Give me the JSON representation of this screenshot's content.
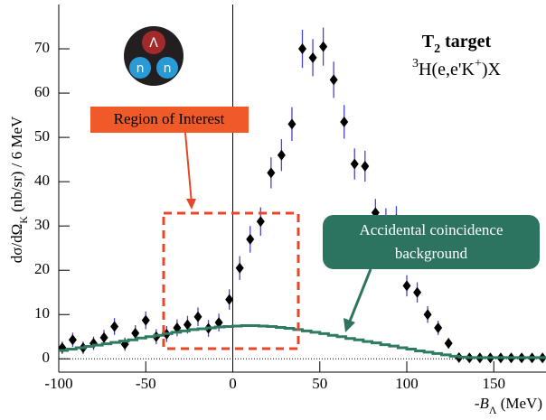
{
  "chart_data": {
    "type": "scatter",
    "title": [
      {
        "text": "T",
        "pos": "base"
      },
      {
        "text": "2",
        "pos": "sub"
      },
      {
        "text": " target",
        "pos": "base"
      }
    ],
    "subtitle": [
      {
        "text": "3",
        "pos": "sup"
      },
      {
        "text": "H(e,e'K",
        "pos": "base"
      },
      {
        "text": "+",
        "pos": "sup"
      },
      {
        "text": ")X",
        "pos": "base"
      }
    ],
    "y_label": [
      {
        "text": "dσ/dΩ",
        "pos": "base"
      },
      {
        "text": "K",
        "pos": "sub"
      },
      {
        "text": " (nb/sr) / 6 MeV",
        "pos": "base"
      }
    ],
    "x_label": [
      {
        "text": "-B",
        "pos": "italic"
      },
      {
        "text": "Λ",
        "pos": "sub"
      },
      {
        "text": " (MeV)",
        "pos": "base"
      }
    ],
    "annotations": {
      "region": "Region of Interest",
      "background": [
        "Accidental coincidence",
        "background"
      ],
      "icon": [
        "Λ",
        "n",
        "n"
      ]
    },
    "xlim": [
      -100,
      180
    ],
    "ylim": [
      -3,
      80
    ],
    "xticks": [
      -100,
      -50,
      0,
      50,
      100,
      150
    ],
    "yticks": [
      0,
      10,
      20,
      30,
      40,
      50,
      60,
      70
    ],
    "series": [
      {
        "type": "errorbar",
        "color": "#000000",
        "error_color": "#4646c8",
        "x": [
          -98,
          -92,
          -86,
          -80,
          -74,
          -68,
          -62,
          -56,
          -50,
          -44,
          -38,
          -32,
          -26,
          -20,
          -14,
          -8,
          -2,
          4,
          10,
          16,
          22,
          28,
          34,
          40,
          46,
          52,
          58,
          64,
          70,
          76,
          82,
          88,
          94,
          100,
          106,
          112,
          118,
          124,
          130,
          136,
          142,
          148,
          154,
          160,
          166,
          172,
          178
        ],
        "values": [
          2.5,
          4.3,
          2.5,
          3.5,
          4.8,
          7.3,
          3.3,
          5.8,
          8.7,
          5.0,
          5.6,
          7.0,
          7.7,
          9.5,
          6.9,
          8.2,
          13.4,
          20.5,
          27,
          31,
          42,
          46,
          53,
          70,
          68,
          70.5,
          63,
          53.5,
          44,
          43.5,
          33,
          31,
          31.5,
          16.5,
          15,
          10,
          7,
          3.5,
          0.3,
          0.2,
          0.2,
          0.2,
          0.2,
          0.2,
          0.2,
          0.2,
          0.2
        ],
        "errors": [
          1.4,
          1.6,
          1.4,
          1.5,
          1.7,
          1.9,
          1.5,
          1.8,
          2,
          1.7,
          1.8,
          1.9,
          2,
          2.1,
          1.9,
          2,
          2.3,
          2.7,
          3,
          3.2,
          3.5,
          3.6,
          3.8,
          4.3,
          4.2,
          4.3,
          4.1,
          3.8,
          3.5,
          3.5,
          3.1,
          3,
          3,
          2.4,
          2.3,
          1.9,
          1.6,
          1.2,
          0.6,
          0.5,
          0.5,
          0.5,
          0.5,
          0.5,
          0.5,
          0.5,
          0.5
        ]
      },
      {
        "type": "step",
        "color": "#2e7a62",
        "x": [
          -97.5,
          -92.5,
          -87.5,
          -82.5,
          -77.5,
          -72.5,
          -67.5,
          -62.5,
          -57.5,
          -52.5,
          -47.5,
          -42.5,
          -37.5,
          -32.5,
          -27.5,
          -22.5,
          -17.5,
          -12.5,
          -7.5,
          -2.5,
          2.5,
          7.5,
          12.5,
          17.5,
          22.5,
          27.5,
          32.5,
          37.5,
          42.5,
          47.5,
          52.5,
          57.5,
          62.5,
          67.5,
          72.5,
          77.5,
          82.5,
          87.5,
          92.5,
          97.5,
          102.5,
          107.5,
          112.5,
          117.5,
          122.5,
          127.5,
          132.5,
          137.5,
          142.5,
          147.5,
          152.5,
          157.5,
          162.5,
          167.5,
          172.5,
          177.5
        ],
        "values": [
          1.9,
          2.2,
          2.5,
          2.8,
          3.1,
          3.4,
          3.7,
          4.0,
          4.3,
          4.7,
          5.0,
          5.3,
          5.7,
          6.0,
          6.3,
          6.6,
          6.8,
          7.0,
          7.2,
          7.3,
          7.4,
          7.5,
          7.5,
          7.4,
          7.3,
          7.1,
          6.9,
          6.6,
          6.3,
          6.0,
          5.7,
          5.3,
          5.0,
          4.6,
          4.3,
          3.9,
          3.6,
          3.2,
          2.9,
          2.5,
          2.2,
          1.8,
          1.5,
          1.2,
          0.9,
          0.6,
          0.4,
          0.3,
          0.3,
          0.3,
          0.3,
          0.3,
          0.3,
          0.3,
          0.3,
          0.3
        ]
      }
    ]
  }
}
